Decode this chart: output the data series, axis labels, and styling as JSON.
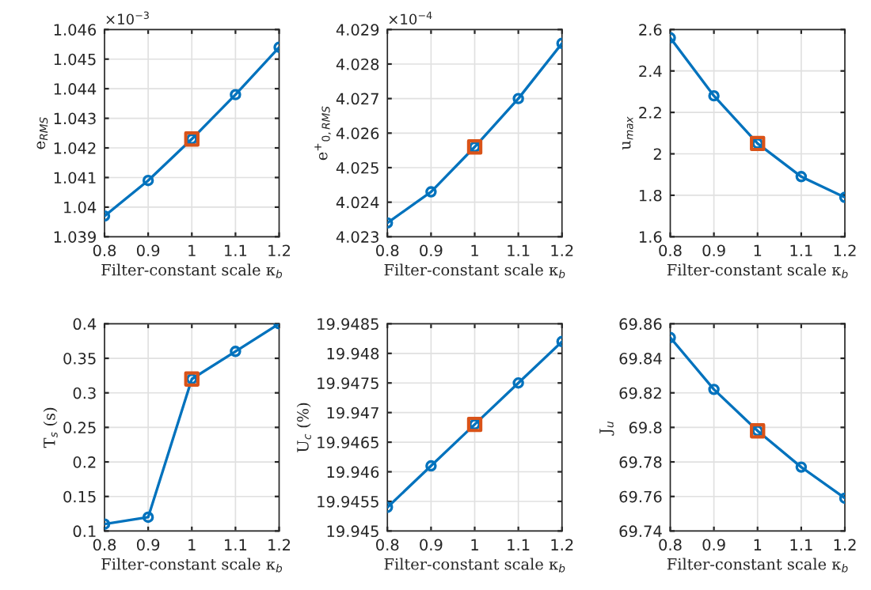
{
  "chart_data": [
    {
      "type": "line",
      "xlabel": "Filter-constant scale κ$_{b}$",
      "ylabel": "e$_{RMS}$",
      "annotations": [
        "×10$^{−3}$"
      ],
      "grid": true,
      "xlim": [
        0.8,
        1.2
      ],
      "xticks": [
        0.8,
        0.9,
        1,
        1.1,
        1.2
      ],
      "ylim": [
        1.039,
        1.046
      ],
      "yticks": [
        1.039,
        1.04,
        1.041,
        1.042,
        1.043,
        1.044,
        1.045,
        1.046
      ],
      "series": [
        {
          "marker": "circle",
          "color": "#0072bd",
          "x": [
            0.8,
            0.9,
            1,
            1.1,
            1.2
          ],
          "values": [
            1.0397,
            1.0409,
            1.0423,
            1.0438,
            1.0454
          ]
        },
        {
          "type": "scatter",
          "marker": "square",
          "color": "#d95319",
          "x": [
            1
          ],
          "values": [
            1.0423
          ]
        }
      ]
    },
    {
      "type": "line",
      "xlabel": "Filter-constant scale κ$_{b}$",
      "ylabel": "e$^{+}$$_{0,RMS}$",
      "annotations": [
        "×10$^{−4}$"
      ],
      "grid": true,
      "xlim": [
        0.8,
        1.2
      ],
      "xticks": [
        0.8,
        0.9,
        1,
        1.1,
        1.2
      ],
      "ylim": [
        4.023,
        4.029
      ],
      "yticks": [
        4.023,
        4.024,
        4.025,
        4.026,
        4.027,
        4.028,
        4.029
      ],
      "series": [
        {
          "marker": "circle",
          "color": "#0072bd",
          "x": [
            0.8,
            0.9,
            1,
            1.1,
            1.2
          ],
          "values": [
            4.0234,
            4.0243,
            4.0256,
            4.027,
            4.0286
          ]
        },
        {
          "type": "scatter",
          "marker": "square",
          "color": "#d95319",
          "x": [
            1
          ],
          "values": [
            4.0256
          ]
        }
      ]
    },
    {
      "type": "line",
      "xlabel": "Filter-constant scale κ$_{b}$",
      "ylabel": "u$_{max}$",
      "grid": true,
      "xlim": [
        0.8,
        1.2
      ],
      "xticks": [
        0.8,
        0.9,
        1,
        1.1,
        1.2
      ],
      "ylim": [
        1.6,
        2.6
      ],
      "yticks": [
        1.6,
        1.8,
        2,
        2.2,
        2.4,
        2.6
      ],
      "series": [
        {
          "marker": "circle",
          "color": "#0072bd",
          "x": [
            0.8,
            0.9,
            1,
            1.1,
            1.2
          ],
          "values": [
            2.56,
            2.28,
            2.05,
            1.89,
            1.79
          ]
        },
        {
          "type": "scatter",
          "marker": "square",
          "color": "#d95319",
          "x": [
            1
          ],
          "values": [
            2.05
          ]
        }
      ]
    },
    {
      "type": "line",
      "xlabel": "Filter-constant scale κ$_{b}$",
      "ylabel": "T$_{s}$ (s)",
      "grid": true,
      "xlim": [
        0.8,
        1.2
      ],
      "xticks": [
        0.8,
        0.9,
        1,
        1.1,
        1.2
      ],
      "ylim": [
        0.1,
        0.4
      ],
      "yticks": [
        0.1,
        0.15,
        0.2,
        0.25,
        0.3,
        0.35,
        0.4
      ],
      "series": [
        {
          "marker": "circle",
          "color": "#0072bd",
          "x": [
            0.8,
            0.9,
            1,
            1.1,
            1.2
          ],
          "values": [
            0.11,
            0.12,
            0.32,
            0.36,
            0.4
          ]
        },
        {
          "type": "scatter",
          "marker": "square",
          "color": "#d95319",
          "x": [
            1
          ],
          "values": [
            0.32
          ]
        }
      ]
    },
    {
      "type": "line",
      "xlabel": "Filter-constant scale κ$_{b}$",
      "ylabel": "U$_{c}$ (%)",
      "grid": true,
      "xlim": [
        0.8,
        1.2
      ],
      "xticks": [
        0.8,
        0.9,
        1,
        1.1,
        1.2
      ],
      "ylim": [
        19.945,
        19.9485
      ],
      "yticks": [
        19.945,
        19.9455,
        19.946,
        19.9465,
        19.947,
        19.9475,
        19.948,
        19.9485
      ],
      "series": [
        {
          "marker": "circle",
          "color": "#0072bd",
          "x": [
            0.8,
            0.9,
            1,
            1.1,
            1.2
          ],
          "values": [
            19.9454,
            19.9461,
            19.9468,
            19.9475,
            19.9482
          ]
        },
        {
          "type": "scatter",
          "marker": "square",
          "color": "#d95319",
          "x": [
            1
          ],
          "values": [
            19.9468
          ]
        }
      ]
    },
    {
      "type": "line",
      "xlabel": "Filter-constant scale κ$_{b}$",
      "ylabel": "J$_{u}$",
      "grid": true,
      "xlim": [
        0.8,
        1.2
      ],
      "xticks": [
        0.8,
        0.9,
        1,
        1.1,
        1.2
      ],
      "ylim": [
        69.74,
        69.86
      ],
      "yticks": [
        69.74,
        69.76,
        69.78,
        69.8,
        69.82,
        69.84,
        69.86
      ],
      "series": [
        {
          "marker": "circle",
          "color": "#0072bd",
          "x": [
            0.8,
            0.9,
            1,
            1.1,
            1.2
          ],
          "values": [
            69.852,
            69.822,
            69.798,
            69.777,
            69.759
          ]
        },
        {
          "type": "scatter",
          "marker": "square",
          "color": "#d95319",
          "x": [
            1
          ],
          "values": [
            69.798
          ]
        }
      ]
    }
  ]
}
